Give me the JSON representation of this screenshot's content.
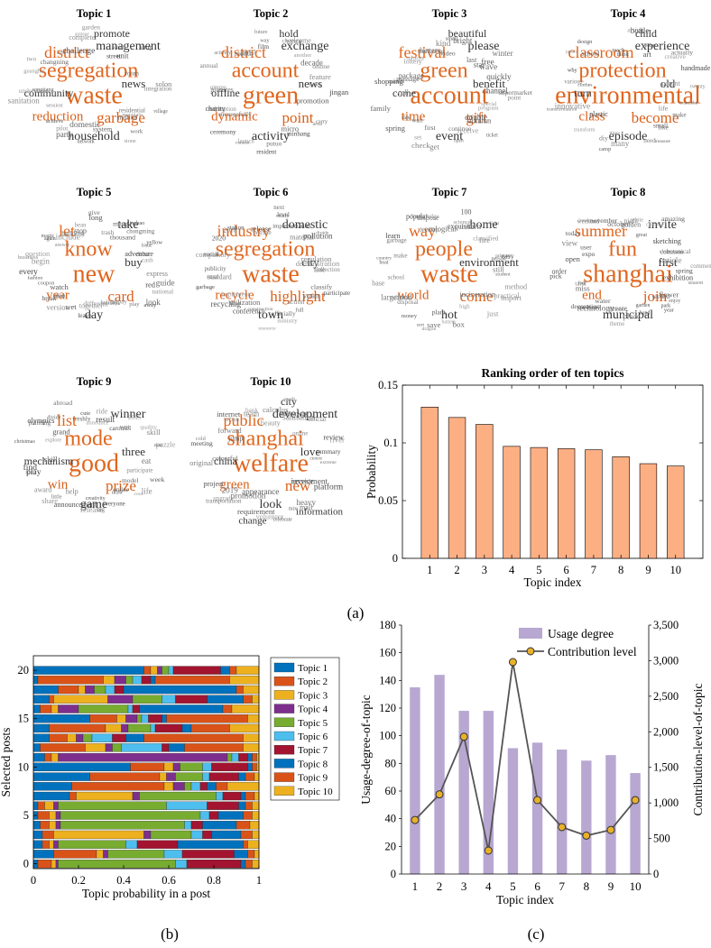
{
  "panel_labels": [
    "(a)",
    "(b)",
    "(c)"
  ],
  "wordclouds": [
    {
      "title": "Topic 1",
      "main": [
        "waste",
        "segregation",
        "district",
        "garbage",
        "reduction",
        "management",
        "household",
        "news",
        "community",
        "promote"
      ],
      "minor": [
        "village",
        "residential",
        "mountain",
        "million",
        "work",
        "stone",
        "system",
        "network",
        "domestic",
        "party",
        "pilot",
        "achieve",
        "session",
        "sanitation",
        "understand",
        "songjiang",
        "guanghai",
        "changning",
        "two",
        "first",
        "challenge",
        "complete",
        "appear",
        "garden",
        "street",
        "social",
        "unit",
        "shop",
        "room",
        "integration",
        "solon"
      ]
    },
    {
      "title": "Topic 2",
      "main": [
        "green",
        "account",
        "district",
        "point",
        "dynamic",
        "exchange",
        "activity",
        "news",
        "offline",
        "hold"
      ],
      "minor": [
        "jingan",
        "promotion",
        "carry",
        "area",
        "micro",
        "minhang",
        "putuo",
        "resident",
        "contest",
        "launch",
        "ceremony",
        "successfully",
        "redemption",
        "charity",
        "pictures",
        "qinqpu",
        "annual",
        "actively",
        "month",
        "2017",
        "film",
        "future",
        "way",
        "change",
        "welcome",
        "another",
        "decade",
        "online",
        "feature",
        "ticket"
      ]
    },
    {
      "title": "Topic 3",
      "main": [
        "account",
        "green",
        "festival",
        "gift",
        "time",
        "please",
        "event",
        "benefit",
        "come",
        "beautiful"
      ],
      "minor": [
        "point",
        "special",
        "program",
        "double",
        "ticket",
        "autumn",
        "continue",
        "receive",
        "open",
        "get",
        "first",
        "check",
        "set",
        "wait",
        "spring",
        "day",
        "family",
        "call",
        "shopping",
        "message",
        "carnival",
        "package",
        "surprise",
        "lottery",
        "lantern",
        "exclusive",
        "kind",
        "video",
        "small",
        "bright",
        "last",
        "star",
        "free",
        "winter",
        "wave",
        "quickly",
        "channel",
        "supermarket"
      ]
    },
    {
      "title": "Topic 4",
      "main": [
        "environmental",
        "protection",
        "classroom",
        "become",
        "class",
        "experience",
        "episode",
        "old",
        "turn",
        "child"
      ],
      "minor": [
        "beautiful",
        "life",
        "make",
        "like",
        "small",
        "treasure",
        "need",
        "many",
        "thing",
        "camp",
        "diy",
        "transform",
        "plastic",
        "transformation",
        "innovative",
        "various",
        "clothes",
        "why",
        "japan",
        "design",
        "school",
        "teach",
        "think",
        "article",
        "bottle",
        "art",
        "paper",
        "creative",
        "actually",
        "handmade",
        "parent",
        "twenty"
      ]
    },
    {
      "title": "Topic 5",
      "main": [
        "new",
        "know",
        "let",
        "card",
        "year",
        "take",
        "day",
        "buy"
      ],
      "minor": [
        "red",
        "guide",
        "national",
        "away",
        "look",
        "play",
        "alipay",
        "holiday",
        "vacation",
        "together",
        "different",
        "leave",
        "wet",
        "version",
        "smart",
        "break",
        "third",
        "watch",
        "coupon",
        "every",
        "fashion",
        "begin",
        "business",
        "question",
        "again",
        "answer",
        "magic",
        "building",
        "include",
        "bean",
        "stop",
        "give",
        "long",
        "trash",
        "mung",
        "xiaobao",
        "chongming",
        "thousand",
        "yellow",
        "issue",
        "debut",
        "adventure",
        "cash",
        "express"
      ]
    },
    {
      "title": "Topic 6",
      "main": [
        "waste",
        "segregation",
        "industry",
        "highlight",
        "recycle",
        "domestic",
        "town",
        "city"
      ],
      "minor": [
        "collection",
        "participate",
        "classify",
        "yuan",
        "full",
        "action",
        "ministry",
        "officially",
        "resource",
        "construction",
        "conference",
        "utilization",
        "recycling",
        "implement",
        "garbage",
        "rural",
        "standard",
        "publicity",
        "social",
        "compulsory",
        "2020",
        "2018",
        "station",
        "release",
        "practice",
        "next",
        "ready",
        "level",
        "implementation",
        "divide",
        "material",
        "pollution",
        "regulation",
        "fine",
        "demonstration"
      ]
    },
    {
      "title": "Topic 7",
      "main": [
        "waste",
        "people",
        "way",
        "come",
        "world",
        "home",
        "hot",
        "environment"
      ],
      "minor": [
        "student",
        "import",
        "method",
        "practical",
        "incineration",
        "just",
        "high",
        "box",
        "battery",
        "plant",
        "save",
        "dragon",
        "sort",
        "money",
        "disposal",
        "rubbish",
        "food",
        "large",
        "base",
        "school",
        "boat",
        "country",
        "make",
        "learn",
        "garbage",
        "popular",
        "knowledge",
        "develop",
        "dispose",
        "ecological",
        "exquisite",
        "science",
        "100",
        "return",
        "fight",
        "classified",
        "fire",
        "easy",
        "person",
        "primary",
        "still"
      ]
    },
    {
      "title": "Topic 8",
      "main": [
        "shanghai",
        "fun",
        "summer",
        "join",
        "end",
        "invite",
        "municipal",
        "first"
      ],
      "minor": [
        "exhibition",
        "season",
        "flower",
        "second",
        "enjoy",
        "park",
        "year",
        "garden",
        "hand",
        "place",
        "create",
        "theme",
        "science",
        "technology",
        "water",
        "decoration",
        "museum",
        "tank",
        "miss",
        "four",
        "order",
        "pick",
        "expo",
        "open",
        "user",
        "view",
        "today",
        "weekend",
        "house",
        "november",
        "october",
        "golden",
        "night",
        "white",
        "chinese",
        "great",
        "amazing",
        "sketching",
        "clear",
        "botanical",
        "common",
        "article",
        "spring",
        "comment"
      ]
    },
    {
      "title": "Topic 9",
      "main": [
        "good",
        "mode",
        "list",
        "prize",
        "win",
        "winner",
        "game",
        "three",
        "mechanism"
      ],
      "minor": [
        "participate",
        "week",
        "life",
        "cool",
        "model",
        "online",
        "draw",
        "everyone",
        "creativity",
        "big",
        "release",
        "announcement",
        "little",
        "help",
        "share",
        "award",
        "idea",
        "find",
        "play",
        "skill",
        "christmas",
        "explore",
        "painting",
        "grand",
        "olympics",
        "divide",
        "abroad",
        "cute",
        "freshly",
        "announce",
        "ride",
        "result",
        "carousel",
        "2015",
        "wet",
        "skill",
        "quality",
        "puzzle",
        "man",
        "eat"
      ]
    },
    {
      "title": "Topic 10",
      "main": [
        "welfare",
        "shanghai",
        "public",
        "new",
        "green",
        "development",
        "look",
        "love",
        "china",
        "city",
        "change",
        "information"
      ],
      "minor": [
        "centre",
        "platform",
        "investment",
        "service",
        "heavy",
        "mall",
        "mix",
        "volunteer",
        "celebrate",
        "requirement",
        "appearance",
        "promotion",
        "transportation",
        "upgrade",
        "2019",
        "project",
        "original",
        "colourful",
        "cold",
        "meeting",
        "jump",
        "forward",
        "urban",
        "internet",
        "team",
        "bank",
        "beauty",
        "earth",
        "calculus",
        "sanitation",
        "takeaway",
        "online",
        "official",
        "review",
        "river",
        "summary",
        "extreme"
      ]
    }
  ],
  "charts": {
    "ranking": {
      "chart_data": {
        "type": "bar",
        "title": "Ranking order of ten topics",
        "xlabel": "Topic index",
        "ylabel": "Probability",
        "categories": [
          "1",
          "2",
          "3",
          "4",
          "5",
          "6",
          "7",
          "8",
          "9",
          "10"
        ],
        "values": [
          0.131,
          0.122,
          0.116,
          0.097,
          0.096,
          0.095,
          0.094,
          0.088,
          0.082,
          0.08
        ],
        "ylim": [
          0,
          0.15
        ],
        "yticks": [
          0,
          0.05,
          0.1,
          0.15
        ],
        "ytick_labels": [
          "0",
          "0.05",
          "0.1",
          "0.15"
        ],
        "grid": false,
        "color": "#FDAF84"
      }
    },
    "stacked": {
      "chart_data": {
        "type": "bar",
        "orientation": "horizontal",
        "stacked": true,
        "xlabel": "Topic probability in a post",
        "ylabel": "Selected posts",
        "xlim": [
          0,
          1
        ],
        "xticks": [
          0,
          0.2,
          0.4,
          0.6,
          0.8,
          1
        ],
        "xtick_labels": [
          "0",
          "0.2",
          "0.4",
          "0.6",
          "0.8",
          "1"
        ],
        "yticks": [
          0,
          5,
          10,
          15,
          20
        ],
        "ytick_labels": [
          "0",
          "5",
          "10",
          "15",
          "20"
        ],
        "legend_position": "right",
        "series_names": [
          "Topic 1",
          "Topic 2",
          "Topic 3",
          "Topic 4",
          "Topic 5",
          "Topic 6",
          "Topic 7",
          "Topic 8",
          "Topic 9",
          "Topic 10"
        ],
        "colors": [
          "#0072BD",
          "#D95319",
          "#EDB120",
          "#7E2F8E",
          "#77AC30",
          "#4DBEEE",
          "#A2142F",
          "#0072BD",
          "#D95319",
          "#EDB120"
        ],
        "posts": [
          [
            0.02,
            0.06,
            0.02,
            0.01,
            0.52,
            0.05,
            0.24,
            0.02,
            0.03,
            0.03
          ],
          [
            0.09,
            0.19,
            0.03,
            0.02,
            0.25,
            0.08,
            0.23,
            0.06,
            0.03,
            0.02
          ],
          [
            0.04,
            0.03,
            0.02,
            0.02,
            0.3,
            0.05,
            0.18,
            0.29,
            0.02,
            0.05
          ],
          [
            0.04,
            0.05,
            0.4,
            0.03,
            0.18,
            0.05,
            0.04,
            0.13,
            0.05,
            0.03
          ],
          [
            0.03,
            0.04,
            0.03,
            0.02,
            0.55,
            0.03,
            0.05,
            0.15,
            0.06,
            0.04
          ],
          [
            0.02,
            0.05,
            0.03,
            0.02,
            0.62,
            0.04,
            0.04,
            0.11,
            0.04,
            0.03
          ],
          [
            0.02,
            0.03,
            0.04,
            0.02,
            0.48,
            0.18,
            0.14,
            0.03,
            0.03,
            0.03
          ],
          [
            0.16,
            0.03,
            0.25,
            0.03,
            0.34,
            0.03,
            0.08,
            0.02,
            0.04,
            0.02
          ],
          [
            0.17,
            0.41,
            0.04,
            0.05,
            0.03,
            0.04,
            0.03,
            0.04,
            0.05,
            0.14
          ],
          [
            0.25,
            0.31,
            0.03,
            0.04,
            0.12,
            0.03,
            0.13,
            0.03,
            0.04,
            0.02
          ],
          [
            0.43,
            0.15,
            0.04,
            0.03,
            0.1,
            0.04,
            0.16,
            0.02,
            0.02,
            0.01
          ],
          [
            0.05,
            0.03,
            0.03,
            0.75,
            0.02,
            0.03,
            0.04,
            0.02,
            0.02,
            0.01
          ],
          [
            0.03,
            0.2,
            0.09,
            0.03,
            0.04,
            0.18,
            0.03,
            0.07,
            0.26,
            0.07
          ],
          [
            0.07,
            0.08,
            0.04,
            0.03,
            0.04,
            0.09,
            0.06,
            0.08,
            0.44,
            0.07
          ],
          [
            0.07,
            0.25,
            0.07,
            0.03,
            0.1,
            0.02,
            0.12,
            0.04,
            0.17,
            0.13
          ],
          [
            0.25,
            0.12,
            0.04,
            0.05,
            0.02,
            0.03,
            0.06,
            0.02,
            0.36,
            0.05
          ],
          [
            0.03,
            0.05,
            0.03,
            0.09,
            0.22,
            0.02,
            0.03,
            0.37,
            0.04,
            0.12
          ],
          [
            0.07,
            0.02,
            0.24,
            0.11,
            0.13,
            0.06,
            0.14,
            0.16,
            0.04,
            0.03
          ],
          [
            0.11,
            0.09,
            0.03,
            0.04,
            0.05,
            0.04,
            0.04,
            0.5,
            0.03,
            0.07
          ],
          [
            0.02,
            0.29,
            0.05,
            0.05,
            0.03,
            0.04,
            0.04,
            0.02,
            0.33,
            0.13
          ],
          [
            0.49,
            0.03,
            0.03,
            0.02,
            0.03,
            0.02,
            0.21,
            0.04,
            0.03,
            0.1
          ]
        ]
      }
    },
    "usage": {
      "chart_data": {
        "type": "bar",
        "combo_line": true,
        "xlabel": "Topic index",
        "ylabel": "Usage-degree-of-topic",
        "y2label": "Contribution-level-of-topic",
        "categories": [
          "1",
          "2",
          "3",
          "4",
          "5",
          "6",
          "7",
          "8",
          "9",
          "10"
        ],
        "ylim": [
          0,
          180
        ],
        "yticks": [
          0,
          20,
          40,
          60,
          80,
          100,
          120,
          140,
          160,
          180
        ],
        "ytick_labels": [
          "0",
          "20",
          "40",
          "60",
          "80",
          "100",
          "120",
          "140",
          "160",
          "180"
        ],
        "y2lim": [
          0,
          3500
        ],
        "y2ticks": [
          0,
          500,
          1000,
          1500,
          2000,
          2500,
          3000,
          3500
        ],
        "y2tick_labels": [
          "0",
          "500",
          "1,000",
          "1,500",
          "2,000",
          "2,500",
          "3,000",
          "3,500"
        ],
        "legend_position": "top-right",
        "series": [
          {
            "name": "Usage degree",
            "axis": "left",
            "type": "bar",
            "color": "#B7A7D1",
            "values": [
              135,
              144,
              118,
              118,
              91,
              95,
              90,
              82,
              86,
              73
            ]
          },
          {
            "name": "Contribution level",
            "axis": "right",
            "type": "line",
            "color": "#555555",
            "marker_color": "#E8B12A",
            "values": [
              760,
              1120,
              1930,
              330,
              2980,
              1040,
              660,
              540,
              620,
              1040
            ]
          }
        ]
      }
    }
  }
}
